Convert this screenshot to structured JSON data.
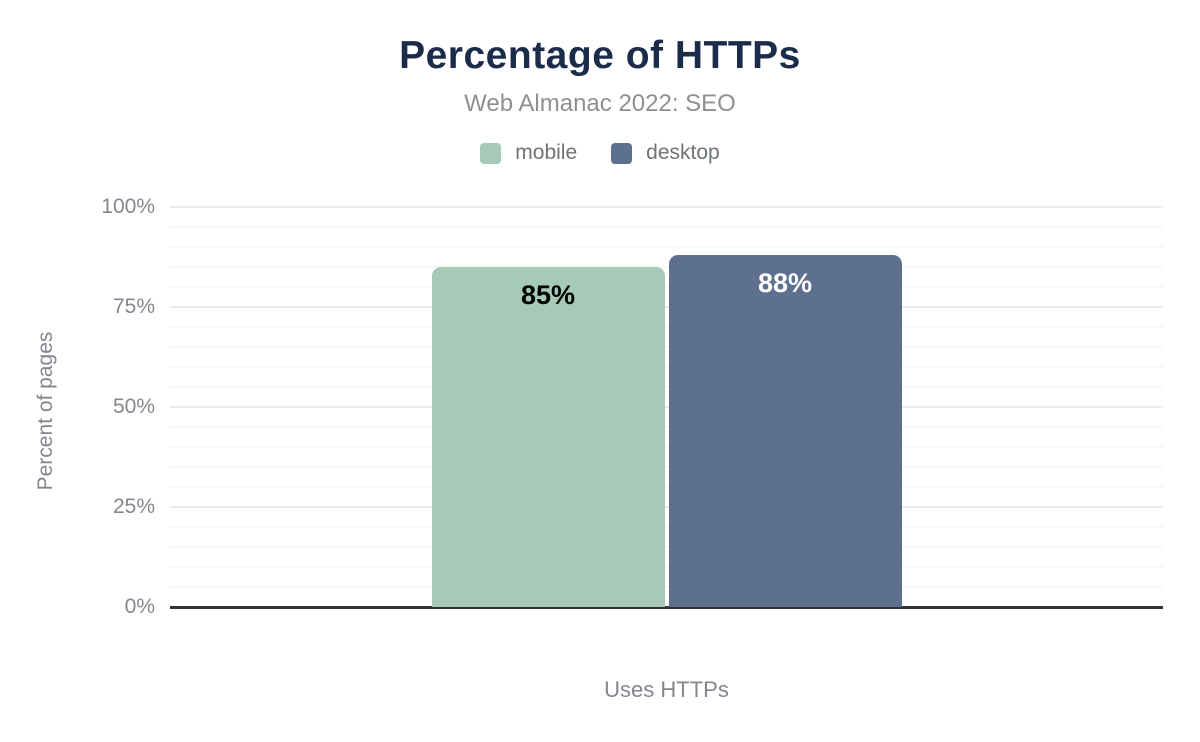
{
  "header": {
    "title": "Percentage of HTTPs",
    "subtitle": "Web Almanac 2022: SEO"
  },
  "legend": {
    "items": [
      {
        "label": "mobile",
        "color": "#a7c9b8"
      },
      {
        "label": "desktop",
        "color": "#5e7090"
      }
    ]
  },
  "axes": {
    "y_title": "Percent of pages",
    "x_title": "Uses HTTPs"
  },
  "colors": {
    "title": "#1b2b4a",
    "subtitle": "#8d9093",
    "axis_text": "#83878d",
    "axis_line": "#333333",
    "grid_major": "#ebebeb",
    "grid_minor": "#f7f7f7",
    "mobile_bar": "#a7c9b8",
    "desktop_bar": "#5e7090"
  },
  "chart_data": {
    "type": "bar",
    "title": "Percentage of HTTPs",
    "subtitle": "Web Almanac 2022: SEO",
    "categories": [
      "Uses HTTPs"
    ],
    "series": [
      {
        "name": "mobile",
        "values": [
          85
        ],
        "value_labels": [
          "85%"
        ],
        "color": "#a7c9b8",
        "value_label_color": "#000000"
      },
      {
        "name": "desktop",
        "values": [
          88
        ],
        "value_labels": [
          "88%"
        ],
        "color": "#5e7090",
        "value_label_color": "#ffffff"
      }
    ],
    "xlabel": "Uses HTTPs",
    "ylabel": "Percent of pages",
    "ylim": [
      0,
      100
    ],
    "yticks": [
      0,
      25,
      50,
      75,
      100
    ],
    "ytick_labels": [
      "0%",
      "25%",
      "50%",
      "75%",
      "100%"
    ],
    "minor_grid_step": 5,
    "grid": true,
    "legend_position": "top"
  }
}
